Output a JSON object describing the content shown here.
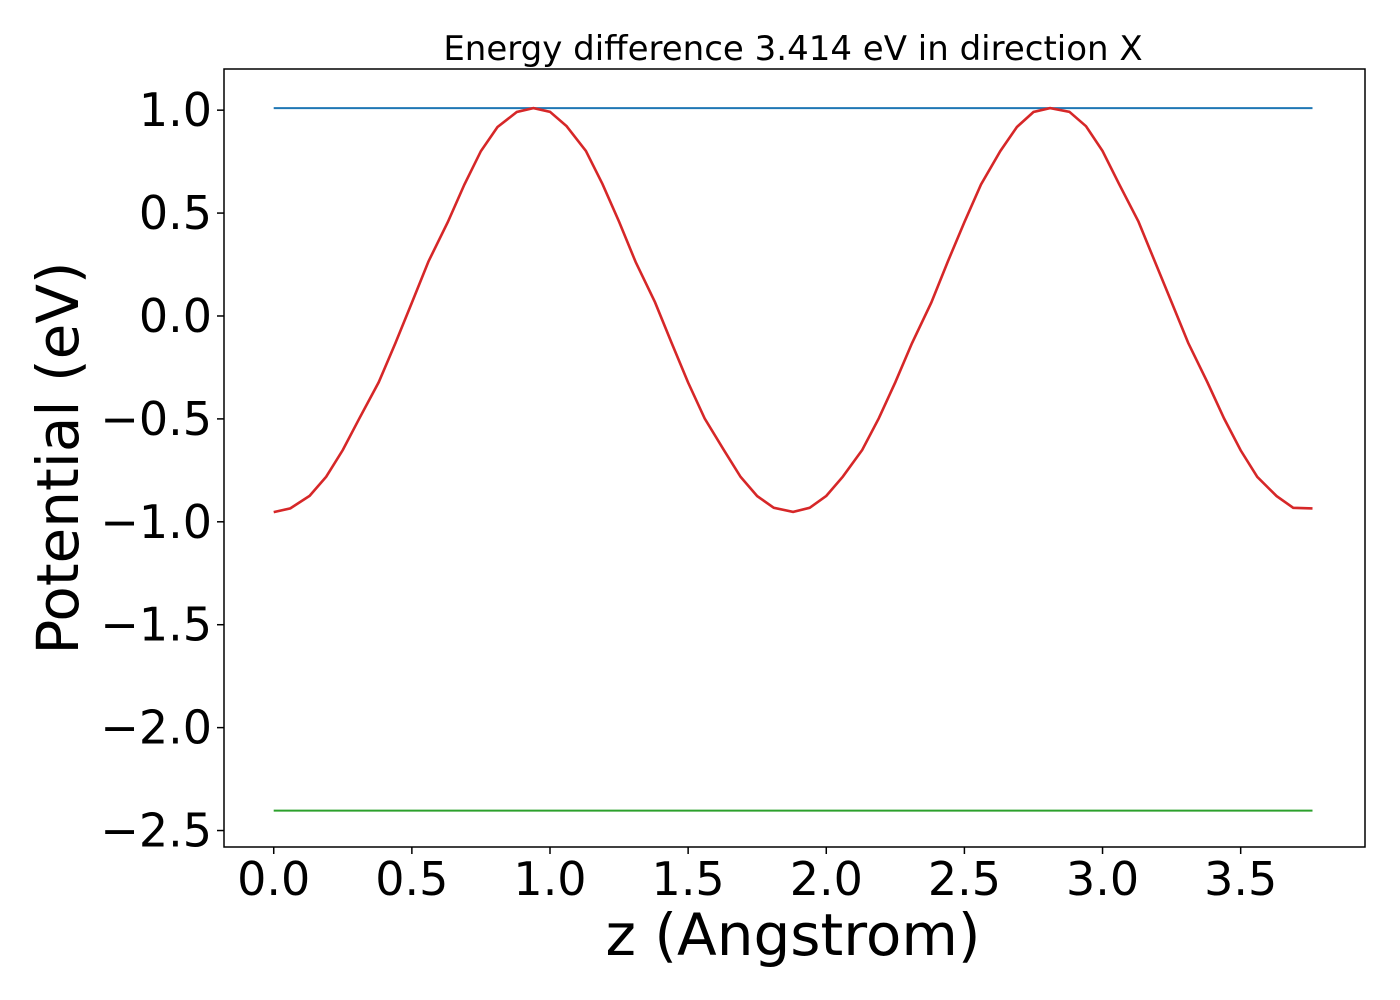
{
  "chart_data": {
    "type": "line",
    "title": "Energy difference 3.414 eV in direction X",
    "xlabel": "z (Angstrom)",
    "ylabel": "Potential (eV)",
    "xlim": [
      -0.18,
      3.95
    ],
    "ylim": [
      -2.58,
      1.2
    ],
    "xticks": [
      0.0,
      0.5,
      1.0,
      1.5,
      2.0,
      2.5,
      3.0,
      3.5
    ],
    "xtick_labels": [
      "0.0",
      "0.5",
      "1.0",
      "1.5",
      "2.0",
      "2.5",
      "3.0",
      "3.5"
    ],
    "yticks": [
      1.0,
      0.5,
      0.0,
      -0.5,
      -1.0,
      -1.5,
      -2.0,
      -2.5
    ],
    "ytick_labels": [
      "1.0",
      "0.5",
      "0.0",
      "−0.5",
      "−1.0",
      "−1.5",
      "−2.0",
      "−2.5"
    ],
    "grid": false,
    "series": [
      {
        "color": "#1f77b4",
        "x": [
          0.0,
          3.76
        ],
        "y": [
          1.01,
          1.01
        ]
      },
      {
        "color": "#2ca02c",
        "x": [
          0.0,
          3.76
        ],
        "y": [
          -2.403,
          -2.403
        ]
      },
      {
        "color": "#d62728",
        "x": [
          0.0,
          0.06,
          0.13,
          0.19,
          0.25,
          0.31,
          0.38,
          0.44,
          0.5,
          0.56,
          0.63,
          0.69,
          0.75,
          0.81,
          0.88,
          0.94,
          1.0,
          1.06,
          1.13,
          1.19,
          1.25,
          1.31,
          1.38,
          1.44,
          1.5,
          1.56,
          1.63,
          1.69,
          1.75,
          1.81,
          1.88,
          1.94,
          2.0,
          2.06,
          2.13,
          2.19,
          2.25,
          2.31,
          2.38,
          2.44,
          2.5,
          2.56,
          2.63,
          2.69,
          2.75,
          2.81,
          2.88,
          2.94,
          3.0,
          3.06,
          3.13,
          3.19,
          3.25,
          3.31,
          3.38,
          3.44,
          3.5,
          3.56,
          3.63,
          3.69,
          3.76
        ],
        "y": [
          -0.953,
          -0.935,
          -0.874,
          -0.781,
          -0.651,
          -0.497,
          -0.322,
          -0.133,
          0.065,
          0.264,
          0.456,
          0.639,
          0.801,
          0.918,
          0.991,
          1.01,
          0.992,
          0.922,
          0.802,
          0.641,
          0.458,
          0.263,
          0.067,
          -0.131,
          -0.323,
          -0.498,
          -0.653,
          -0.782,
          -0.875,
          -0.932,
          -0.952,
          -0.932,
          -0.874,
          -0.781,
          -0.651,
          -0.497,
          -0.322,
          -0.133,
          0.065,
          0.264,
          0.456,
          0.639,
          0.801,
          0.918,
          0.991,
          1.01,
          0.992,
          0.922,
          0.802,
          0.641,
          0.458,
          0.263,
          0.067,
          -0.131,
          -0.323,
          -0.498,
          -0.653,
          -0.782,
          -0.875,
          -0.932,
          -0.935
        ]
      }
    ]
  }
}
